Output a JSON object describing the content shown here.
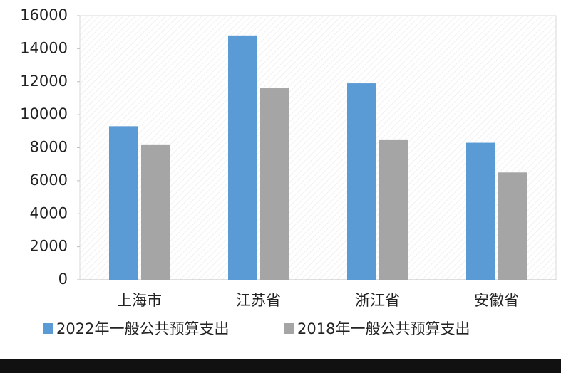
{
  "chart_data": {
    "type": "bar",
    "categories": [
      "上海市",
      "江苏省",
      "浙江省",
      "安徽省"
    ],
    "series": [
      {
        "name": "2022年一般公共预算支出",
        "color": "#5b9bd5",
        "values": [
          9300,
          14800,
          11900,
          8300
        ]
      },
      {
        "name": "2018年一般公共预算支出",
        "color": "#a5a5a5",
        "values": [
          8200,
          11600,
          8500,
          6500
        ]
      }
    ],
    "ylim": [
      0,
      16000
    ],
    "yticks": [
      0,
      2000,
      4000,
      6000,
      8000,
      10000,
      12000,
      14000,
      16000
    ]
  }
}
